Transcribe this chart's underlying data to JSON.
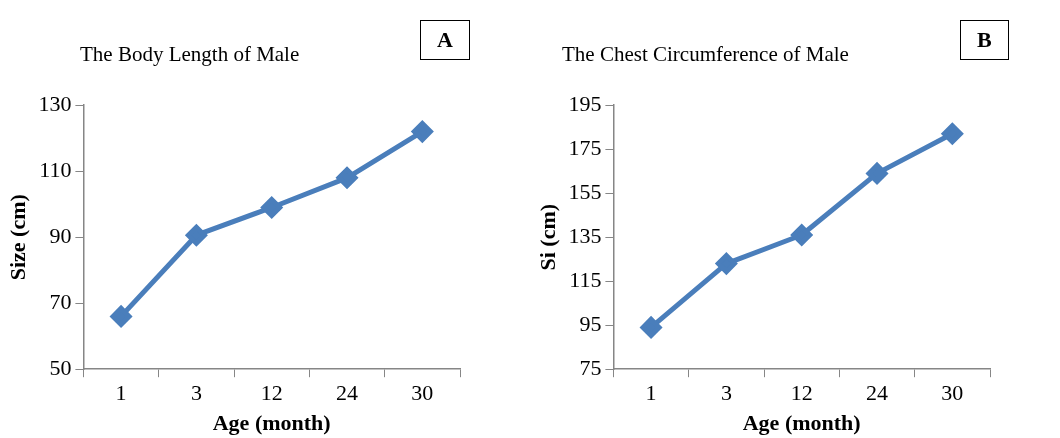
{
  "chart_data": [
    {
      "type": "line",
      "title": "The Body Length of Male",
      "xlabel": "Age (month)",
      "ylabel": "Size (cm)",
      "annotations": [
        "A"
      ],
      "categories": [
        "1",
        "3",
        "12",
        "24",
        "30"
      ],
      "series": [
        {
          "color": "#4a7ebb",
          "values": [
            66,
            90.6,
            99,
            108,
            122
          ]
        }
      ],
      "ylim": [
        50,
        130
      ],
      "yticks": [
        50,
        70,
        90,
        110,
        130
      ],
      "grid": false,
      "legend": false,
      "marker": "diamond",
      "line_style": "solid"
    },
    {
      "type": "line",
      "title": "The Chest Circumference of Male",
      "xlabel": "Age (month)",
      "ylabel": "Si (cm)",
      "annotations": [
        "B"
      ],
      "categories": [
        "1",
        "3",
        "12",
        "24",
        "30"
      ],
      "series": [
        {
          "color": "#4a7ebb",
          "values": [
            94,
            123,
            136,
            164,
            182
          ]
        }
      ],
      "ylim": [
        75,
        195
      ],
      "yticks": [
        75,
        95,
        115,
        135,
        155,
        175,
        195
      ],
      "grid": false,
      "legend": false,
      "marker": "diamond",
      "line_style": "solid"
    }
  ]
}
